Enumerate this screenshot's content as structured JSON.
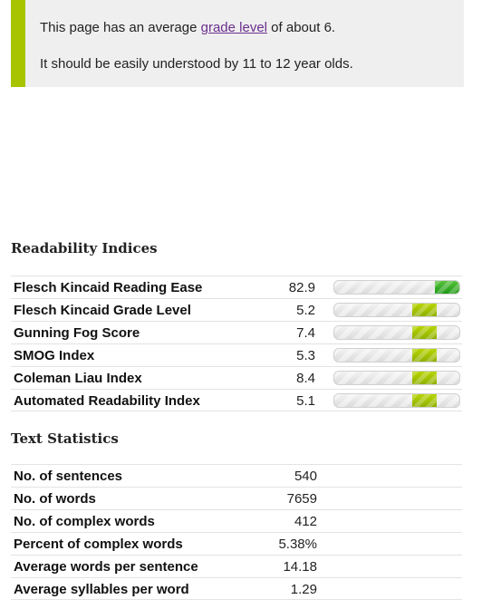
{
  "notice": {
    "line1_before": "This page has an average ",
    "line1_link": "grade level",
    "line1_after": " of about 6.",
    "line2": "It should be easily understood by 11 to 12 year olds.",
    "accent_color": "#a8c400"
  },
  "readability": {
    "title": "Readability Indices",
    "rows": [
      {
        "label": "Flesch Kincaid Reading Ease",
        "value": "82.9",
        "level": 0.9,
        "style": "strong"
      },
      {
        "label": "Flesch Kincaid Grade Level",
        "value": "5.2",
        "level": 0.72,
        "style": "normal"
      },
      {
        "label": "Gunning Fog Score",
        "value": "7.4",
        "level": 0.72,
        "style": "normal"
      },
      {
        "label": "SMOG Index",
        "value": "5.3",
        "level": 0.72,
        "style": "normal"
      },
      {
        "label": "Coleman Liau Index",
        "value": "8.4",
        "level": 0.72,
        "style": "normal"
      },
      {
        "label": "Automated Readability Index",
        "value": "5.1",
        "level": 0.72,
        "style": "normal"
      }
    ]
  },
  "text_statistics": {
    "title": "Text Statistics",
    "rows": [
      {
        "label": "No. of sentences",
        "value": "540"
      },
      {
        "label": "No. of words",
        "value": "7659"
      },
      {
        "label": "No. of complex words",
        "value": "412"
      },
      {
        "label": "Percent of complex words",
        "value": "5.38%"
      },
      {
        "label": "Average words per sentence",
        "value": "14.18"
      },
      {
        "label": "Average syllables per word",
        "value": "1.29"
      }
    ]
  }
}
